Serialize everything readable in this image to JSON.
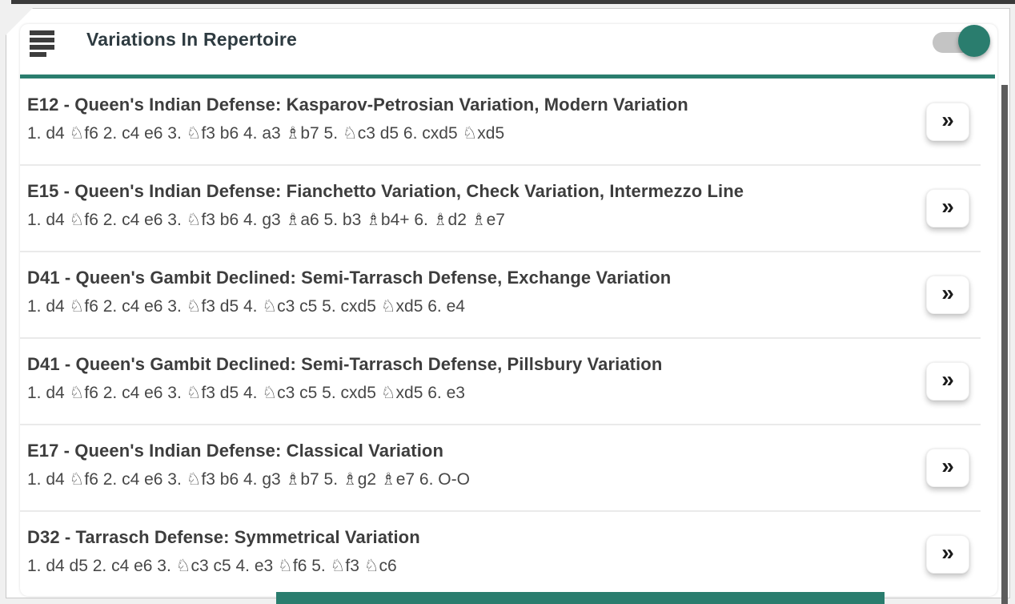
{
  "header": {
    "title": "Variations In Repertoire",
    "menu_icon": "hamburger-icon",
    "toggle": {
      "state": "on",
      "knob_color": "#2a7d6e",
      "track_color": "#c4c4c4"
    }
  },
  "colors": {
    "accent_teal": "#2a7d6e",
    "page_background": "#f0f0f0",
    "top_edge_line": "#3a3a3a",
    "scrollbar_thumb": "#5c5c5c",
    "title_text": "#3d3d3d",
    "moves_text": "#474747"
  },
  "list": {
    "expand_button_label": "»",
    "expand_button_icon": "chevron-double-right-icon",
    "items": [
      {
        "title": "E12 - Queen's Indian Defense: Kasparov-Petrosian Variation, Modern Variation",
        "moves": "1. d4 ♘f6 2. c4 e6 3. ♘f3 b6 4. a3 ♗b7 5. ♘c3 d5 6. cxd5 ♘xd5"
      },
      {
        "title": "E15 - Queen's Indian Defense: Fianchetto Variation, Check Variation, Intermezzo Line",
        "moves": "1. d4 ♘f6 2. c4 e6 3. ♘f3 b6 4. g3 ♗a6 5. b3 ♗b4+ 6. ♗d2 ♗e7"
      },
      {
        "title": "D41 - Queen's Gambit Declined: Semi-Tarrasch Defense, Exchange Variation",
        "moves": "1. d4 ♘f6 2. c4 e6 3. ♘f3 d5 4. ♘c3 c5 5. cxd5 ♘xd5 6. e4"
      },
      {
        "title": "D41 - Queen's Gambit Declined: Semi-Tarrasch Defense, Pillsbury Variation",
        "moves": "1. d4 ♘f6 2. c4 e6 3. ♘f3 d5 4. ♘c3 c5 5. cxd5 ♘xd5 6. e3"
      },
      {
        "title": "E17 - Queen's Indian Defense: Classical Variation",
        "moves": "1. d4 ♘f6 2. c4 e6 3. ♘f3 b6 4. g3 ♗b7 5. ♗g2 ♗e7 6. O-O"
      },
      {
        "title": "D32 - Tarrasch Defense: Symmetrical Variation",
        "moves": "1. d4 d5 2. c4 e6 3. ♘c3 c5 4. e3 ♘f6 5. ♘f3 ♘c6"
      }
    ]
  }
}
